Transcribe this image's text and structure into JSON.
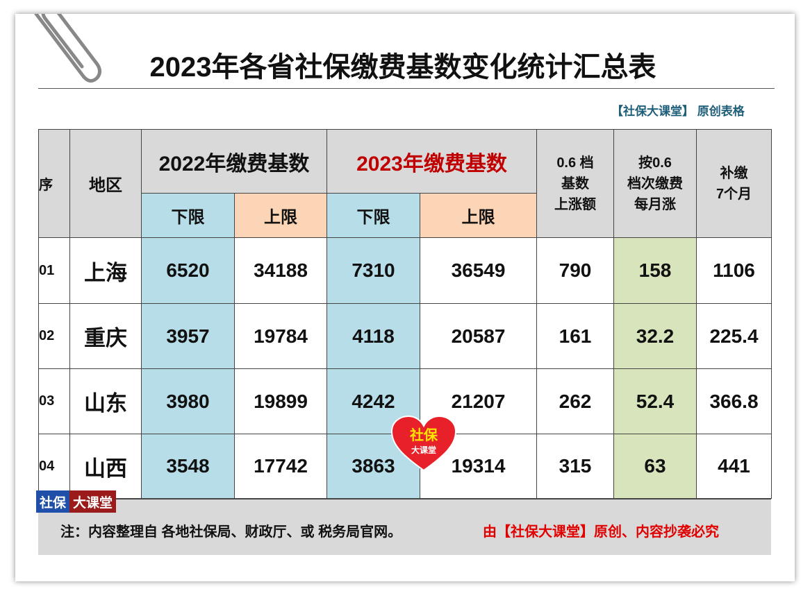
{
  "title": "2023年各省社保缴费基数变化统计汇总表",
  "source_note": "【社保大课堂】 原创表格",
  "table": {
    "header": {
      "seq": "序",
      "region": "地区",
      "group_2022": "2022年缴费基数",
      "group_2023": "2023年缴费基数",
      "lower_2022": "下限",
      "upper_2022": "上限",
      "lower_2023": "下限",
      "upper_2023": "上限",
      "increase": [
        "0.6 档",
        "基数",
        "上涨额"
      ],
      "monthly": [
        "按0.6",
        "档次缴费",
        "每月涨"
      ],
      "backpay": [
        "补缴",
        "7个月"
      ]
    },
    "rows": [
      [
        "01",
        "上海",
        6520,
        34188,
        7310,
        36549,
        790,
        158,
        1106
      ],
      [
        "02",
        "重庆",
        3957,
        19784,
        4118,
        20587,
        161,
        32.2,
        225.4
      ],
      [
        "03",
        "山东",
        3980,
        19899,
        4242,
        21207,
        262,
        52.4,
        366.8
      ],
      [
        "04",
        "山西",
        3548,
        17742,
        3863,
        19314,
        315,
        63,
        441
      ]
    ]
  },
  "footer": {
    "note": "注：内容整理自 各地社保局、财政厅、或 税务局官网。",
    "copyright": "由【社保大课堂】原创、内容抄袭必究"
  },
  "badge": {
    "left": "社保",
    "right": "大课堂"
  },
  "heart": {
    "top": "社保",
    "bottom": "大课堂"
  }
}
